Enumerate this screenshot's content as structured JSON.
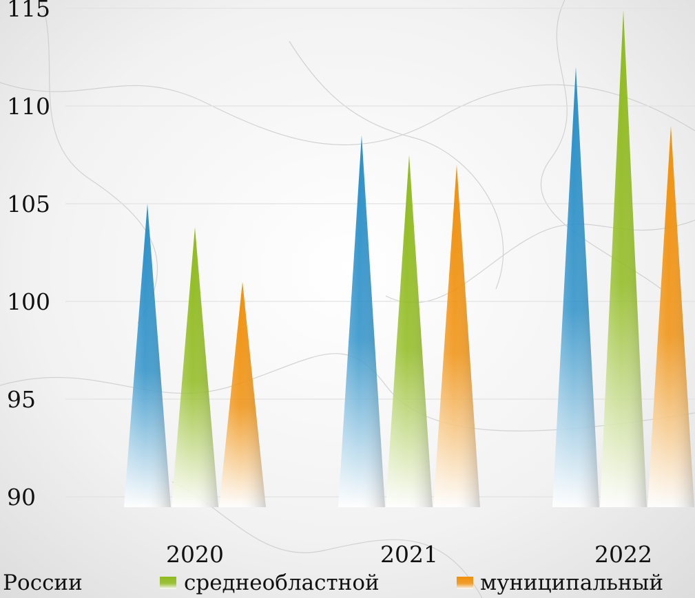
{
  "chart_data": {
    "type": "bar",
    "categories": [
      "2020",
      "2021",
      "2022"
    ],
    "series": [
      {
        "name": "по России",
        "values": [
          105.0,
          108.5,
          112.0
        ],
        "color": "#2a8fc7"
      },
      {
        "name": "среднеобластной",
        "values": [
          103.8,
          107.5,
          114.9
        ],
        "color": "#8fba1d"
      },
      {
        "name": "муниципальный",
        "values": [
          101.0,
          107.0,
          109.0
        ],
        "color": "#f0900c"
      }
    ],
    "ylim": [
      90,
      115
    ],
    "yticks": [
      90,
      95,
      100,
      105,
      110,
      115
    ],
    "grid": true,
    "legend": "bottom",
    "bar_shape": "cone"
  }
}
